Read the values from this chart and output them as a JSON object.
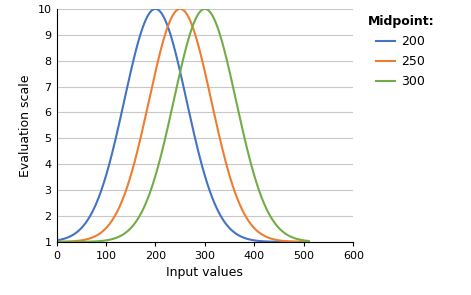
{
  "midpoints": [
    200,
    250,
    300
  ],
  "colors": [
    "#4472C4",
    "#ED7D31",
    "#70AD47"
  ],
  "labels": [
    "200",
    "250",
    "300"
  ],
  "xlim": [
    0,
    600
  ],
  "ylim": [
    1,
    10
  ],
  "xticks": [
    0,
    100,
    200,
    300,
    400,
    500,
    600
  ],
  "yticks": [
    1,
    2,
    3,
    4,
    5,
    6,
    7,
    8,
    9,
    10
  ],
  "xlabel": "Input values",
  "ylabel": "Evaluation scale",
  "legend_title": "Midpoint:",
  "x_min": 0,
  "x_max": 510,
  "sigma": 63,
  "min_val": 1,
  "max_val": 10,
  "background_color": "#FFFFFF",
  "grid_color": "#C8C8C8"
}
